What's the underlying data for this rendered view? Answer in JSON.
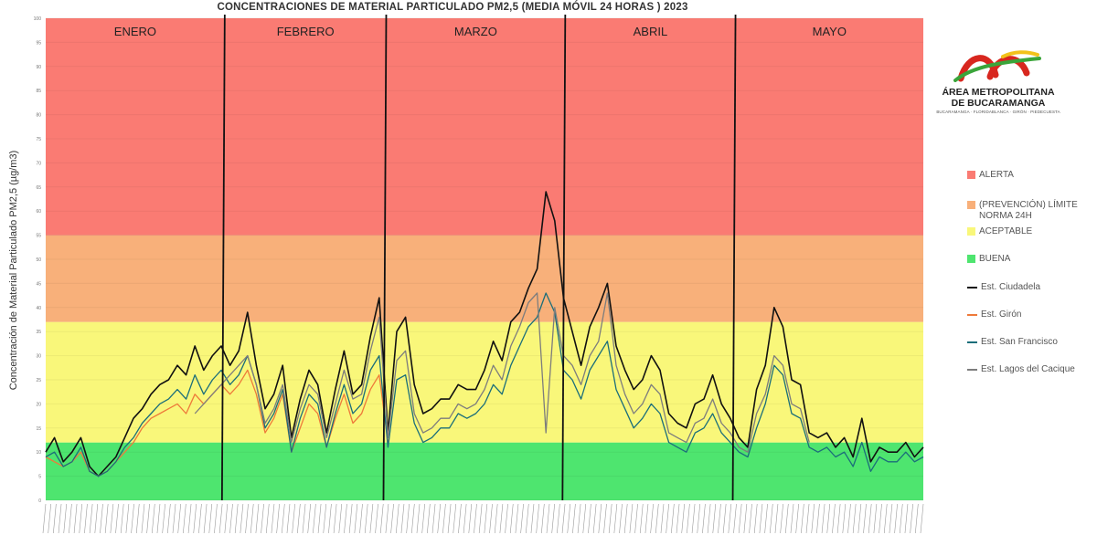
{
  "chart_data": {
    "type": "line",
    "title": "CONCENTRACIONES DE MATERIAL PARTICULADO PM2,5 (MEDIA MÓVIL 24 HORAS )  2023",
    "ylabel": "Concentración de Material Particulado PM2,5 (µg/m3)",
    "xlabel": "",
    "ylim": [
      0,
      100
    ],
    "x_range": [
      0,
      100
    ],
    "yticks": [
      0,
      5,
      10,
      15,
      20,
      25,
      30,
      35,
      40,
      45,
      50,
      55,
      60,
      65,
      70,
      75,
      80,
      85,
      90,
      95,
      100
    ],
    "bands": [
      {
        "label": "BUENA",
        "from": 0,
        "to": 12,
        "color": "#4ee56f"
      },
      {
        "label": "ACEPTABLE",
        "from": 12,
        "to": 37,
        "color": "#f9f77a"
      },
      {
        "label": "(PREVENCIÓN) LÍMITE NORMA 24H",
        "from": 37,
        "to": 55,
        "color": "#f8b07a"
      },
      {
        "label": "ALERTA",
        "from": 55,
        "to": 100,
        "color": "#fa7b73"
      }
    ],
    "months": [
      {
        "label": "ENERO",
        "from": 0,
        "to": 20.4
      },
      {
        "label": "FEBRERO",
        "from": 20.4,
        "to": 38.8
      },
      {
        "label": "MARZO",
        "from": 38.8,
        "to": 59.2
      },
      {
        "label": "ABRIL",
        "from": 59.2,
        "to": 78.6
      },
      {
        "label": "MAYO",
        "from": 78.6,
        "to": 100
      }
    ],
    "dividers": [
      20.4,
      38.8,
      59.2,
      78.6
    ],
    "legend_position": "right",
    "series": [
      {
        "name": "Est. Ciudadela",
        "color": "#111111",
        "x": [
          0,
          1,
          2,
          3,
          4,
          5,
          6,
          7,
          8,
          9,
          10,
          11,
          12,
          13,
          14,
          15,
          16,
          17,
          18,
          19,
          20,
          21,
          22,
          23,
          24,
          25,
          26,
          27,
          28,
          29,
          30,
          31,
          32,
          33,
          34,
          35,
          36,
          37,
          38,
          39,
          40,
          41,
          42,
          43,
          44,
          45,
          46,
          47,
          48,
          49,
          50,
          51,
          52,
          53,
          54,
          55,
          56,
          57,
          58,
          59,
          60,
          61,
          62,
          63,
          64,
          65,
          66,
          67,
          68,
          69,
          70,
          71,
          72,
          73,
          74,
          75,
          76,
          77,
          78,
          79,
          80,
          81,
          82,
          83,
          84,
          85,
          86,
          87,
          88,
          89,
          90,
          91,
          92,
          93,
          94,
          95,
          96,
          97,
          98,
          99,
          100
        ],
        "values": [
          10,
          13,
          8,
          10,
          13,
          7,
          5,
          7,
          9,
          13,
          17,
          19,
          22,
          24,
          25,
          28,
          26,
          32,
          27,
          30,
          32,
          28,
          31,
          39,
          28,
          19,
          22,
          28,
          13,
          21,
          27,
          24,
          14,
          23,
          31,
          22,
          24,
          34,
          42,
          14,
          35,
          38,
          24,
          18,
          19,
          21,
          21,
          24,
          23,
          23,
          27,
          33,
          29,
          37,
          39,
          44,
          48,
          64,
          58,
          42,
          35,
          28,
          36,
          40,
          45,
          32,
          27,
          23,
          25,
          30,
          27,
          18,
          16,
          15,
          20,
          21,
          26,
          20,
          17,
          13,
          11,
          23,
          28,
          40,
          36,
          25,
          24,
          14,
          13,
          14,
          11,
          13,
          9,
          17,
          8,
          11,
          10,
          10,
          12,
          9,
          11
        ]
      },
      {
        "name": "Est. Girón",
        "color": "#ee7a3a",
        "x": [
          0,
          1,
          2,
          3,
          4,
          5,
          6,
          7,
          8,
          9,
          10,
          11,
          12,
          13,
          14,
          15,
          16,
          17,
          18,
          19,
          20,
          21,
          22,
          23,
          24,
          25,
          26,
          27,
          28,
          29,
          30,
          31,
          32,
          33,
          34,
          35,
          36,
          37,
          38,
          39
        ],
        "values": [
          9,
          8,
          7,
          8,
          10,
          6,
          5,
          6,
          8,
          10,
          12,
          15,
          17,
          18,
          19,
          20,
          18,
          22,
          20,
          22,
          24,
          22,
          24,
          27,
          22,
          14,
          17,
          22,
          10,
          15,
          20,
          18,
          11,
          17,
          22,
          16,
          18,
          23,
          26,
          12
        ]
      },
      {
        "name": "Est. San Francisco",
        "color": "#1b6e7a",
        "x": [
          0,
          1,
          2,
          3,
          4,
          5,
          6,
          7,
          8,
          9,
          10,
          11,
          12,
          13,
          14,
          15,
          16,
          17,
          18,
          19,
          20,
          21,
          22,
          23,
          24,
          25,
          26,
          27,
          28,
          29,
          30,
          31,
          32,
          33,
          34,
          35,
          36,
          37,
          38,
          39,
          40,
          41,
          42,
          43,
          44,
          45,
          46,
          47,
          48,
          49,
          50,
          51,
          52,
          53,
          54,
          55,
          56,
          57,
          58,
          59,
          60,
          61,
          62,
          63,
          64,
          65,
          66,
          67,
          68,
          69,
          70,
          71,
          72,
          73,
          74,
          75,
          76,
          77,
          78,
          79,
          80,
          81,
          82,
          83,
          84,
          85,
          86,
          87,
          88,
          89,
          90,
          91,
          92,
          93,
          94,
          95,
          96,
          97,
          98,
          99,
          100
        ],
        "values": [
          9,
          10,
          7,
          8,
          11,
          6,
          5,
          6,
          8,
          11,
          13,
          16,
          18,
          20,
          21,
          23,
          21,
          26,
          22,
          25,
          27,
          24,
          26,
          30,
          24,
          15,
          18,
          23,
          10,
          17,
          22,
          20,
          11,
          18,
          24,
          18,
          20,
          27,
          30,
          11,
          25,
          26,
          16,
          12,
          13,
          15,
          15,
          18,
          17,
          18,
          20,
          24,
          22,
          28,
          32,
          36,
          38,
          43,
          39,
          27,
          25,
          21,
          27,
          30,
          33,
          23,
          19,
          15,
          17,
          20,
          18,
          12,
          11,
          10,
          14,
          15,
          18,
          14,
          12,
          10,
          9,
          15,
          20,
          28,
          26,
          18,
          17,
          11,
          10,
          11,
          9,
          10,
          7,
          12,
          6,
          9,
          8,
          8,
          10,
          8,
          9
        ]
      },
      {
        "name": "Est. Lagos del Cacique",
        "color": "#7d7d7d",
        "x": [
          17,
          18,
          19,
          20,
          21,
          22,
          23,
          24,
          25,
          26,
          27,
          28,
          29,
          30,
          31,
          32,
          33,
          34,
          35,
          36,
          37,
          38,
          39,
          40,
          41,
          42,
          43,
          44,
          45,
          46,
          47,
          48,
          49,
          50,
          51,
          52,
          53,
          54,
          55,
          56,
          57,
          58,
          59,
          60,
          61,
          62,
          63,
          64,
          65,
          66,
          67,
          68,
          69,
          70,
          71,
          72,
          73,
          74,
          75,
          76,
          77,
          78,
          79,
          80,
          81,
          82,
          83,
          84,
          85,
          86,
          87
        ],
        "values": [
          18,
          20,
          22,
          24,
          26,
          28,
          30,
          24,
          16,
          19,
          24,
          12,
          19,
          24,
          22,
          13,
          20,
          27,
          21,
          22,
          31,
          38,
          13,
          29,
          31,
          18,
          14,
          15,
          17,
          17,
          20,
          19,
          20,
          23,
          28,
          25,
          32,
          36,
          41,
          43,
          14,
          40,
          30,
          28,
          24,
          30,
          33,
          43,
          28,
          22,
          18,
          20,
          24,
          22,
          14,
          13,
          12,
          16,
          17,
          21,
          16,
          14,
          11,
          10,
          18,
          22,
          30,
          28,
          20,
          19,
          12
        ]
      }
    ]
  },
  "legend": [
    {
      "label": "ALERTA",
      "kind": "swatch",
      "color": "#fa7b73"
    },
    {
      "label": "(PREVENCIÓN) LÍMITE NORMA 24H",
      "kind": "swatch",
      "color": "#f8b07a"
    },
    {
      "label": "ACEPTABLE",
      "kind": "swatch",
      "color": "#f9f77a"
    },
    {
      "label": "BUENA",
      "kind": "swatch",
      "color": "#4ee56f"
    },
    {
      "label": "Est. Ciudadela",
      "kind": "line",
      "color": "#111111"
    },
    {
      "label": "Est. Girón",
      "kind": "line",
      "color": "#ee7a3a"
    },
    {
      "label": "Est. San Francisco",
      "kind": "line",
      "color": "#1b6e7a"
    },
    {
      "label": "Est. Lagos del Cacique",
      "kind": "line",
      "color": "#7d7d7d"
    }
  ],
  "logo": {
    "line1": "ÁREA METROPOLITANA",
    "line2": "DE BUCARAMANGA",
    "line3": "BUCARAMANGA · FLORIDABLANCA · GIRÓN · PIEDECUESTA"
  }
}
